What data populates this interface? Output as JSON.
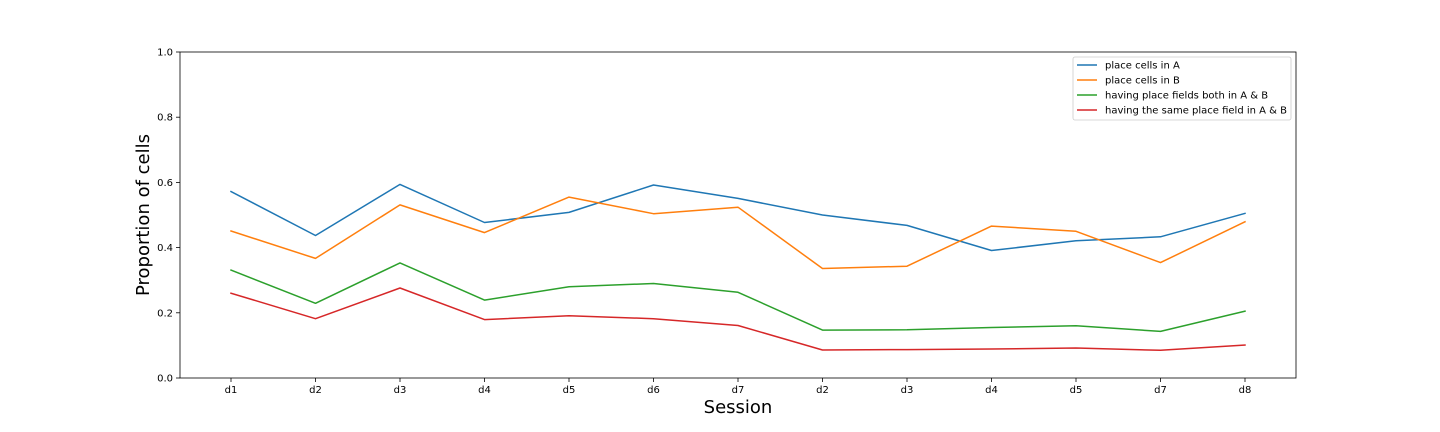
{
  "chart_data": {
    "type": "line",
    "xlabel": "Session",
    "ylabel": "Proportion of cells",
    "categories": [
      "d1",
      "d2",
      "d3",
      "d4",
      "d5",
      "d6",
      "d7",
      "d2",
      "d3",
      "d4",
      "d5",
      "d7",
      "d8"
    ],
    "ylim": [
      0.0,
      1.0
    ],
    "yticks": [
      "0.0",
      "0.2",
      "0.4",
      "0.6",
      "0.8",
      "1.0"
    ],
    "ytick_values": [
      0.0,
      0.2,
      0.4,
      0.6,
      0.8,
      1.0
    ],
    "grid": false,
    "legend_position": "top-right",
    "series": [
      {
        "name": "place cells in A",
        "color": "#1f77b4",
        "values": [
          0.572,
          0.437,
          0.594,
          0.477,
          0.508,
          0.592,
          0.551,
          0.5,
          0.468,
          0.391,
          0.421,
          0.433,
          0.505
        ]
      },
      {
        "name": "place cells in B",
        "color": "#ff7f0e",
        "values": [
          0.451,
          0.367,
          0.531,
          0.446,
          0.555,
          0.504,
          0.524,
          0.336,
          0.343,
          0.466,
          0.45,
          0.354,
          0.479
        ]
      },
      {
        "name": "having place fields both in A & B",
        "color": "#2ca02c",
        "values": [
          0.331,
          0.229,
          0.353,
          0.239,
          0.28,
          0.29,
          0.263,
          0.147,
          0.148,
          0.155,
          0.16,
          0.143,
          0.205
        ]
      },
      {
        "name": "having the same place field in A & B",
        "color": "#d62728",
        "values": [
          0.26,
          0.182,
          0.276,
          0.179,
          0.191,
          0.182,
          0.161,
          0.086,
          0.087,
          0.089,
          0.092,
          0.085,
          0.101
        ]
      }
    ]
  }
}
